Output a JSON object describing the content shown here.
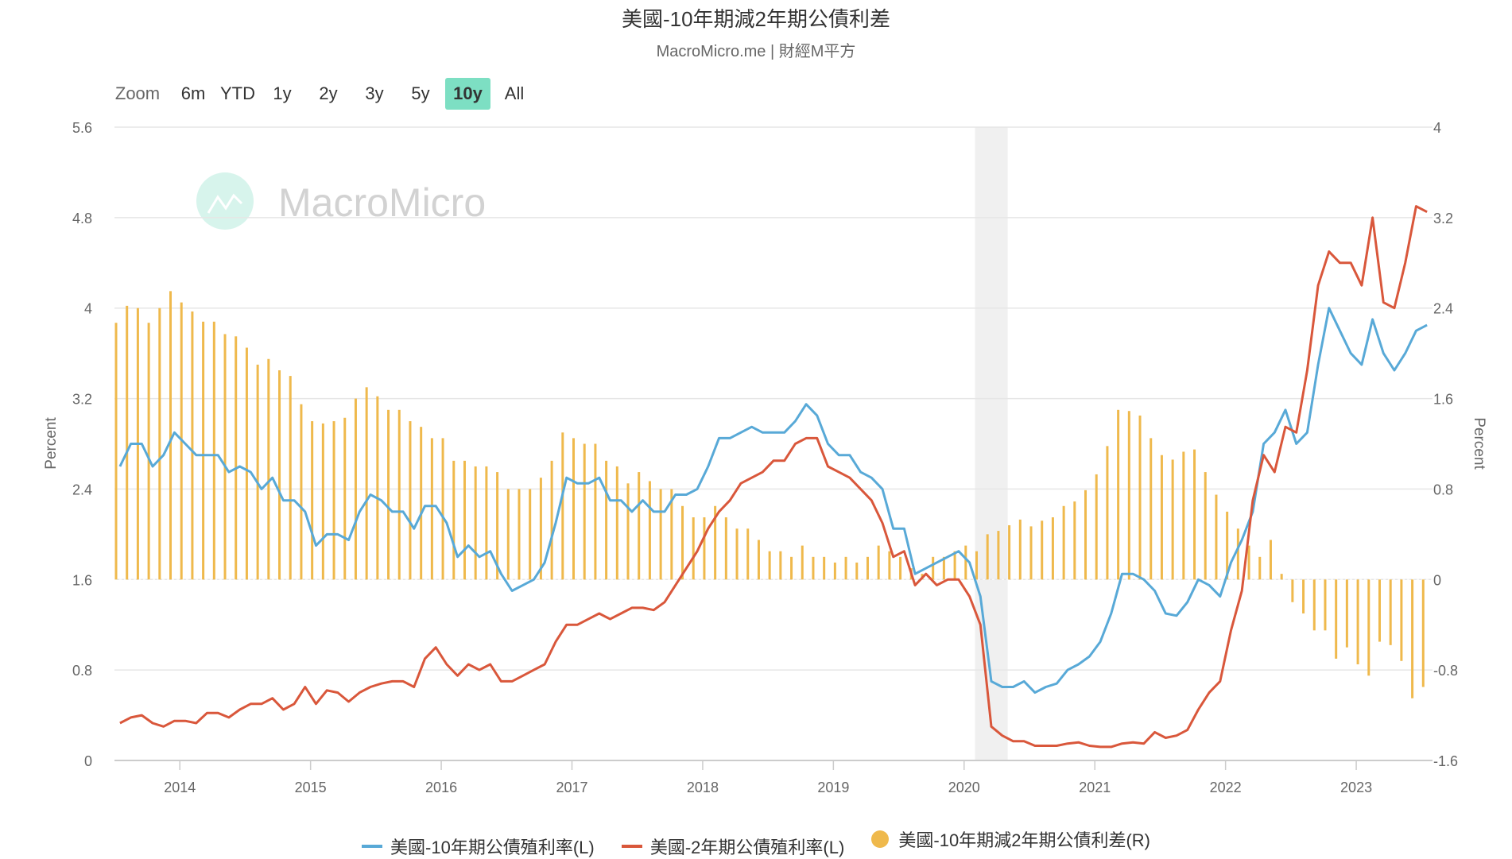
{
  "title": "美國-10年期減2年期公債利差",
  "subtitle": "MacroMicro.me | 財經M平方",
  "watermark": "MacroMicro",
  "zoom": {
    "label": "Zoom",
    "buttons": [
      "6m",
      "YTD",
      "1y",
      "2y",
      "3y",
      "5y",
      "10y",
      "All"
    ],
    "active": "10y"
  },
  "colors": {
    "ten_year": "#58a9d7",
    "two_year": "#d9573b",
    "spread": "#efb94c",
    "recession": "#f0f0f0",
    "active_button": "#7ddfc3"
  },
  "chart_data": {
    "type": "line+bar",
    "x_start": "2013-07",
    "x_end": "2023-07",
    "x_frequency": "monthly",
    "xticks": [
      "2014",
      "2015",
      "2016",
      "2017",
      "2018",
      "2019",
      "2020",
      "2021",
      "2022",
      "2023"
    ],
    "left_axis": {
      "label": "Percent",
      "range": [
        0,
        5.6
      ],
      "ticks": [
        "0",
        "0.8",
        "1.6",
        "2.4",
        "3.2",
        "4",
        "4.8",
        "5.6"
      ]
    },
    "right_axis": {
      "label": "Percent",
      "range": [
        -1.6,
        4
      ],
      "ticks": [
        "-1.6",
        "-0.8",
        "0",
        "0.8",
        "1.6",
        "2.4",
        "3.2",
        "4"
      ]
    },
    "grid": true,
    "legend_position": "bottom",
    "recession_band": [
      "2020-02",
      "2020-04"
    ],
    "series": [
      {
        "name": "美國-10年期公債殖利率(L)",
        "type": "line",
        "axis": "left",
        "values": [
          2.6,
          2.8,
          2.8,
          2.6,
          2.7,
          2.9,
          2.8,
          2.7,
          2.7,
          2.7,
          2.55,
          2.6,
          2.55,
          2.4,
          2.5,
          2.3,
          2.3,
          2.2,
          1.9,
          2.0,
          2.0,
          1.95,
          2.2,
          2.35,
          2.3,
          2.2,
          2.2,
          2.05,
          2.25,
          2.25,
          2.1,
          1.8,
          1.9,
          1.8,
          1.85,
          1.65,
          1.5,
          1.55,
          1.6,
          1.75,
          2.1,
          2.5,
          2.45,
          2.45,
          2.5,
          2.3,
          2.3,
          2.2,
          2.3,
          2.2,
          2.2,
          2.35,
          2.35,
          2.4,
          2.6,
          2.85,
          2.85,
          2.9,
          2.95,
          2.9,
          2.9,
          2.9,
          3.0,
          3.15,
          3.05,
          2.8,
          2.7,
          2.7,
          2.55,
          2.5,
          2.4,
          2.05,
          2.05,
          1.65,
          1.7,
          1.75,
          1.8,
          1.85,
          1.75,
          1.45,
          0.7,
          0.65,
          0.65,
          0.7,
          0.6,
          0.65,
          0.68,
          0.8,
          0.85,
          0.92,
          1.05,
          1.3,
          1.65,
          1.65,
          1.6,
          1.5,
          1.3,
          1.28,
          1.4,
          1.6,
          1.55,
          1.45,
          1.75,
          1.95,
          2.2,
          2.8,
          2.9,
          3.1,
          2.8,
          2.9,
          3.5,
          4.0,
          3.8,
          3.6,
          3.5,
          3.9,
          3.6,
          3.45,
          3.6,
          3.8,
          3.85
        ]
      },
      {
        "name": "美國-2年期公債殖利率(L)",
        "type": "line",
        "axis": "left",
        "values": [
          0.33,
          0.38,
          0.4,
          0.33,
          0.3,
          0.35,
          0.35,
          0.33,
          0.42,
          0.42,
          0.38,
          0.45,
          0.5,
          0.5,
          0.55,
          0.45,
          0.5,
          0.65,
          0.5,
          0.62,
          0.6,
          0.52,
          0.6,
          0.65,
          0.68,
          0.7,
          0.7,
          0.65,
          0.9,
          1.0,
          0.85,
          0.75,
          0.85,
          0.8,
          0.85,
          0.7,
          0.7,
          0.75,
          0.8,
          0.85,
          1.05,
          1.2,
          1.2,
          1.25,
          1.3,
          1.25,
          1.3,
          1.35,
          1.35,
          1.33,
          1.4,
          1.55,
          1.7,
          1.85,
          2.05,
          2.2,
          2.3,
          2.45,
          2.5,
          2.55,
          2.65,
          2.65,
          2.8,
          2.85,
          2.85,
          2.6,
          2.55,
          2.5,
          2.4,
          2.3,
          2.1,
          1.8,
          1.85,
          1.55,
          1.65,
          1.55,
          1.6,
          1.6,
          1.45,
          1.2,
          0.3,
          0.22,
          0.17,
          0.17,
          0.13,
          0.13,
          0.13,
          0.15,
          0.16,
          0.13,
          0.12,
          0.12,
          0.15,
          0.16,
          0.15,
          0.25,
          0.2,
          0.22,
          0.27,
          0.45,
          0.6,
          0.7,
          1.15,
          1.5,
          2.3,
          2.7,
          2.55,
          2.95,
          2.9,
          3.45,
          4.2,
          4.5,
          4.4,
          4.4,
          4.2,
          4.8,
          4.05,
          4.0,
          4.4,
          4.9,
          4.85
        ]
      },
      {
        "name": "美國-10年期減2年期公債利差(R)",
        "type": "bar",
        "axis": "right",
        "values": [
          2.27,
          2.42,
          2.4,
          2.27,
          2.4,
          2.55,
          2.45,
          2.37,
          2.28,
          2.28,
          2.17,
          2.15,
          2.05,
          1.9,
          1.95,
          1.85,
          1.8,
          1.55,
          1.4,
          1.38,
          1.4,
          1.43,
          1.6,
          1.7,
          1.62,
          1.5,
          1.5,
          1.4,
          1.35,
          1.25,
          1.25,
          1.05,
          1.05,
          1.0,
          1.0,
          0.95,
          0.8,
          0.8,
          0.8,
          0.9,
          1.05,
          1.3,
          1.25,
          1.2,
          1.2,
          1.05,
          1.0,
          0.85,
          0.95,
          0.87,
          0.8,
          0.8,
          0.65,
          0.55,
          0.55,
          0.65,
          0.55,
          0.45,
          0.45,
          0.35,
          0.25,
          0.25,
          0.2,
          0.3,
          0.2,
          0.2,
          0.15,
          0.2,
          0.15,
          0.2,
          0.3,
          0.25,
          0.2,
          0.1,
          0.05,
          0.2,
          0.2,
          0.25,
          0.3,
          0.25,
          0.4,
          0.43,
          0.48,
          0.53,
          0.47,
          0.52,
          0.55,
          0.65,
          0.69,
          0.79,
          0.93,
          1.18,
          1.5,
          1.49,
          1.45,
          1.25,
          1.1,
          1.06,
          1.13,
          1.15,
          0.95,
          0.75,
          0.6,
          0.45,
          0.3,
          0.2,
          0.35,
          0.05,
          -0.2,
          -0.3,
          -0.45,
          -0.45,
          -0.7,
          -0.6,
          -0.75,
          -0.85,
          -0.55,
          -0.58,
          -0.72,
          -1.05,
          -0.95
        ]
      }
    ]
  }
}
